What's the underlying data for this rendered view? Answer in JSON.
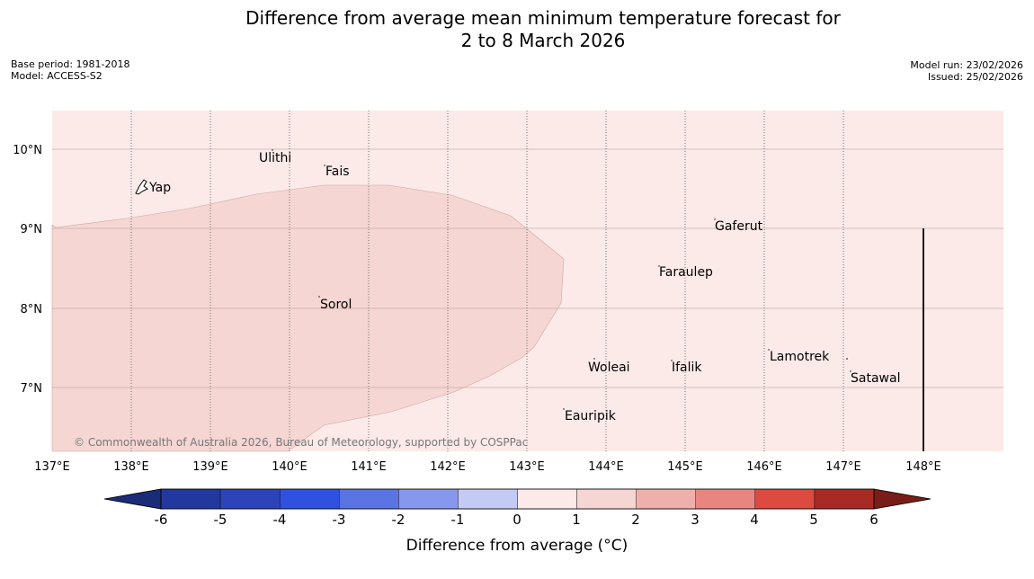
{
  "header": {
    "title_line1": "Difference from average mean minimum temperature forecast for",
    "title_line2": "2 to 8 March 2026",
    "base_period": "Base period: 1981-2018",
    "model": "Model: ACCESS-S2",
    "model_run": "Model run: 23/02/2026",
    "issued": "Issued: 25/02/2026"
  },
  "map": {
    "lon_labels": [
      "137°E",
      "138°E",
      "139°E",
      "140°E",
      "141°E",
      "142°E",
      "143°E",
      "144°E",
      "145°E",
      "146°E",
      "147°E",
      "148°E"
    ],
    "lat_labels": [
      "10°N",
      "9°N",
      "8°N",
      "7°N"
    ],
    "places": [
      "Ulithi",
      "Fais",
      "Yap",
      "Gaferut",
      "Faraulep",
      "Sorol",
      "Woleai",
      "Ifalik",
      "Lamotrek",
      "Satawal",
      "Eauripik"
    ],
    "copyright": "© Commonwealth of Australia 2026, Bureau of Meteorology, supported by COSPPac",
    "background_color": "#fbeae8",
    "anomaly_region_color": "#f5d6d3"
  },
  "colorbar": {
    "ticks": [
      "-6",
      "-5",
      "-4",
      "-3",
      "-2",
      "-1",
      "0",
      "1",
      "2",
      "3",
      "4",
      "5",
      "6"
    ],
    "colors": [
      "#22389e",
      "#2c44b8",
      "#3051e0",
      "#5a74e4",
      "#8697ec",
      "#c3caf4",
      "#eaedfb",
      "#fbeae8",
      "#f5d6d3",
      "#efb0ab",
      "#e88580",
      "#dc4a40",
      "#a82a24"
    ],
    "low_extend_color": "#1c2b78",
    "high_extend_color": "#7a1c18",
    "label": "Difference from average (°C)"
  }
}
